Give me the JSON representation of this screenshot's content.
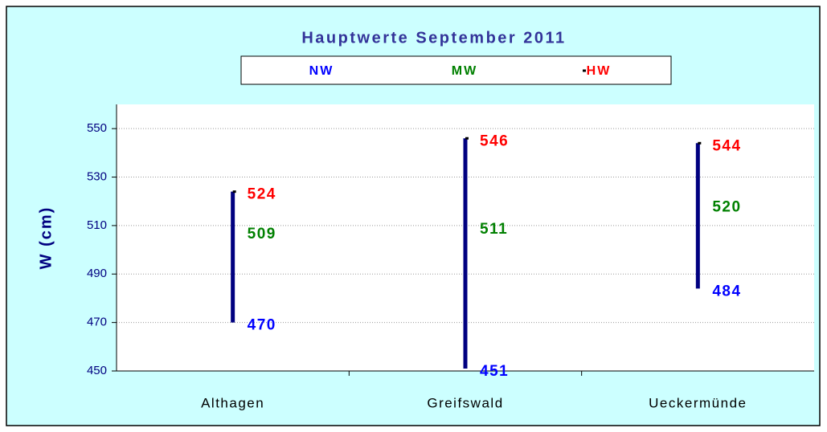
{
  "chart_data": {
    "type": "range",
    "title": "Hauptwerte September 2011",
    "y_label": "W (cm)",
    "categories": [
      "Althagen",
      "Greifswald",
      "Ueckermünde"
    ],
    "series": [
      {
        "name": "NW",
        "color": "#0000ff",
        "values": [
          470,
          451,
          484
        ]
      },
      {
        "name": "MW",
        "color": "#008000",
        "values": [
          509,
          511,
          520
        ]
      },
      {
        "name": "HW",
        "color": "#ff0000",
        "values": [
          524,
          546,
          544
        ]
      }
    ],
    "range_color": "#000080",
    "marker_color": "#000000",
    "ylim": [
      450,
      560
    ],
    "yticks": [
      450,
      470,
      490,
      510,
      530,
      550
    ],
    "grid": true,
    "legend": "top"
  }
}
